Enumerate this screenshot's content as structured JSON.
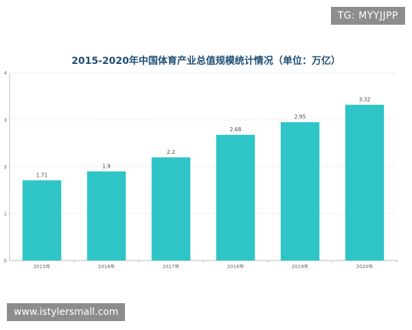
{
  "watermarks": {
    "top_right": "TG: MYYJJPP",
    "bottom_left": "www.istylersmall.com"
  },
  "colors": {
    "bar": "#2fc4c6",
    "title": "#1f4e73",
    "axis": "#bbbbbb",
    "grid": "#d9d9d9"
  },
  "chart_data": {
    "type": "bar",
    "title": "2015-2020年中国体育产业总值规模统计情况（单位：万亿）",
    "categories": [
      "2015年",
      "2016年",
      "2017年",
      "2018年",
      "2019年",
      "2020年"
    ],
    "values": [
      1.71,
      1.9,
      2.2,
      2.68,
      2.95,
      3.32
    ],
    "data_labels": [
      "1.71",
      "1.9",
      "2.2",
      "2.68",
      "2.95",
      "3.32"
    ],
    "yticks": [
      "0",
      "1",
      "2",
      "3",
      "4"
    ],
    "ylim": [
      0,
      4
    ],
    "xlabel": "",
    "ylabel": "",
    "grid": true
  }
}
